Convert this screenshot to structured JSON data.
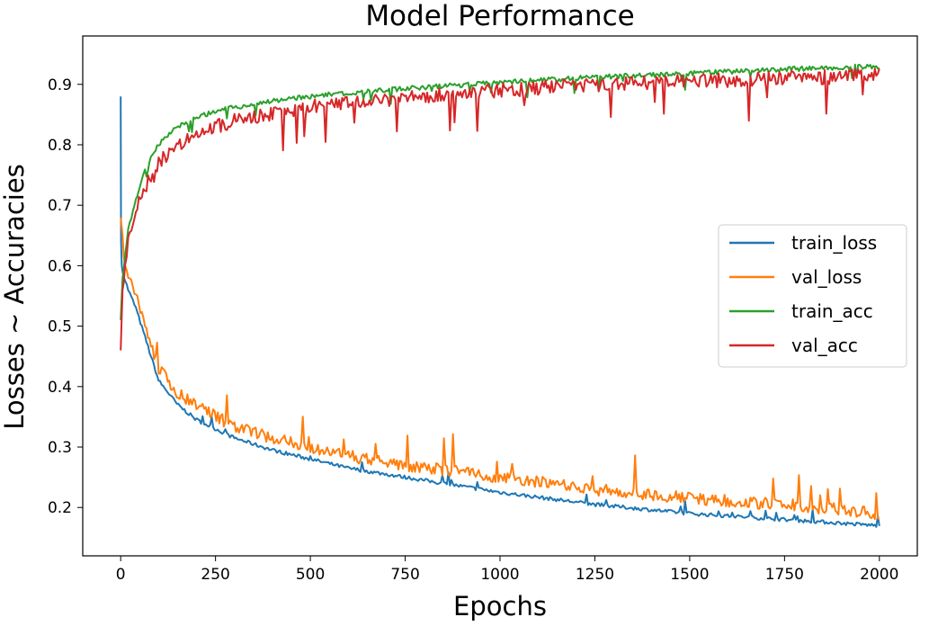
{
  "chart_data": {
    "type": "line",
    "title": "Model Performance",
    "xlabel": "Epochs",
    "ylabel": "Losses ~ Accuracies",
    "xlim": [
      -100,
      2100
    ],
    "ylim": [
      0.12,
      0.98
    ],
    "xticks": [
      0,
      250,
      500,
      750,
      1000,
      1250,
      1500,
      1750,
      2000
    ],
    "xtick_labels": [
      "0",
      "250",
      "500",
      "750",
      "1000",
      "1250",
      "1500",
      "1750",
      "2000"
    ],
    "yticks": [
      0.2,
      0.3,
      0.4,
      0.5,
      0.6,
      0.7,
      0.8,
      0.9
    ],
    "ytick_labels": [
      "0.2",
      "0.3",
      "0.4",
      "0.5",
      "0.6",
      "0.7",
      "0.8",
      "0.9"
    ],
    "grid": false,
    "legend_position": "center-right",
    "series": [
      {
        "name": "train_loss",
        "color": "#1f77b4",
        "noise": 0.003,
        "x": [
          0,
          1,
          3,
          5,
          10,
          20,
          40,
          60,
          80,
          100,
          150,
          200,
          250,
          300,
          400,
          500,
          600,
          750,
          1000,
          1250,
          1500,
          1750,
          2000
        ],
        "y": [
          0.88,
          0.64,
          0.6,
          0.59,
          0.58,
          0.56,
          0.53,
          0.49,
          0.45,
          0.41,
          0.37,
          0.345,
          0.33,
          0.315,
          0.295,
          0.28,
          0.265,
          0.25,
          0.225,
          0.205,
          0.19,
          0.18,
          0.17
        ]
      },
      {
        "name": "val_loss",
        "color": "#ff7f0e",
        "noise": 0.01,
        "x": [
          0,
          5,
          10,
          20,
          40,
          60,
          80,
          100,
          150,
          200,
          250,
          300,
          400,
          500,
          600,
          750,
          1000,
          1250,
          1500,
          1750,
          2000
        ],
        "y": [
          0.68,
          0.65,
          0.61,
          0.58,
          0.55,
          0.51,
          0.47,
          0.43,
          0.39,
          0.37,
          0.35,
          0.335,
          0.315,
          0.3,
          0.285,
          0.27,
          0.25,
          0.23,
          0.215,
          0.205,
          0.19
        ]
      },
      {
        "name": "train_acc",
        "color": "#2ca02c",
        "noise": 0.004,
        "x": [
          0,
          5,
          10,
          20,
          40,
          60,
          80,
          100,
          150,
          200,
          250,
          300,
          400,
          500,
          600,
          750,
          1000,
          1250,
          1500,
          1750,
          2000
        ],
        "y": [
          0.51,
          0.58,
          0.61,
          0.66,
          0.71,
          0.75,
          0.78,
          0.8,
          0.83,
          0.845,
          0.855,
          0.862,
          0.872,
          0.88,
          0.886,
          0.893,
          0.903,
          0.912,
          0.918,
          0.925,
          0.93
        ]
      },
      {
        "name": "val_acc",
        "color": "#d62728",
        "noise": 0.012,
        "x": [
          0,
          5,
          10,
          20,
          40,
          60,
          80,
          100,
          150,
          200,
          250,
          300,
          400,
          500,
          600,
          750,
          1000,
          1250,
          1500,
          1750,
          2000
        ],
        "y": [
          0.46,
          0.56,
          0.6,
          0.64,
          0.69,
          0.72,
          0.75,
          0.77,
          0.8,
          0.82,
          0.83,
          0.84,
          0.852,
          0.862,
          0.87,
          0.877,
          0.89,
          0.9,
          0.905,
          0.91,
          0.915
        ]
      }
    ]
  }
}
